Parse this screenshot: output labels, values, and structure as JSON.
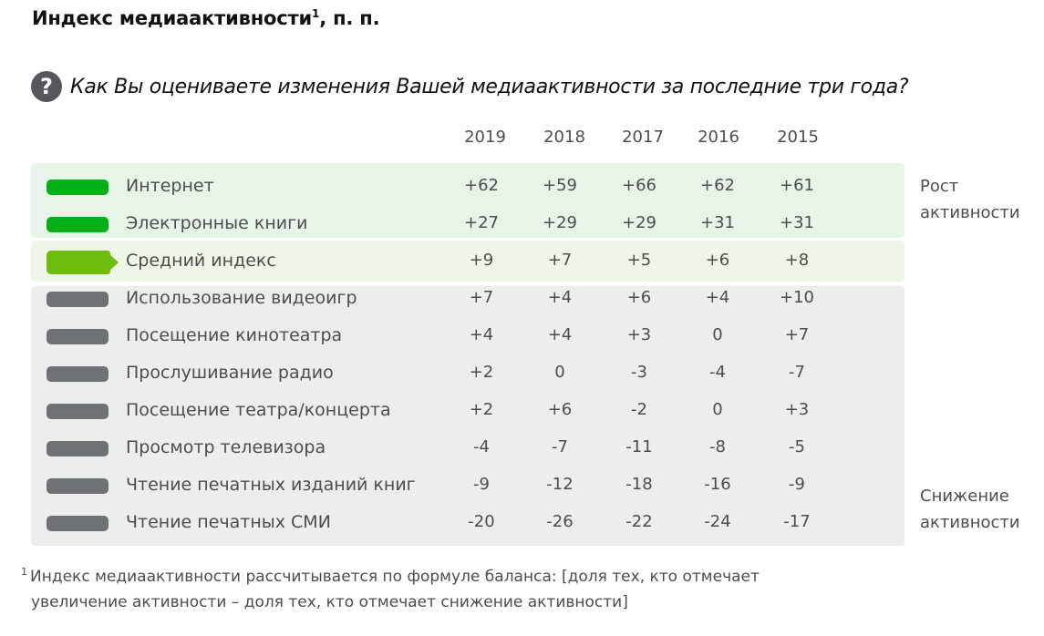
{
  "title": {
    "text": "Индекс медиаактивности",
    "sup": "1",
    "suffix": ", п. п."
  },
  "question": {
    "icon": "question-circle-icon",
    "glyph": "?",
    "text": "Как Вы оцениваете изменения Вашей медиаактивности за последние три года?"
  },
  "years": [
    "2019",
    "2018",
    "2017",
    "2016",
    "2015"
  ],
  "rows": [
    {
      "label": "Интернет",
      "group": "grow",
      "values": [
        "+62",
        "+59",
        "+66",
        "+62",
        "+61"
      ]
    },
    {
      "label": "Электронные книги",
      "group": "grow",
      "values": [
        "+27",
        "+29",
        "+29",
        "+31",
        "+31"
      ]
    },
    {
      "label": "Средний индекс",
      "group": "avg",
      "values": [
        "+9",
        "+7",
        "+5",
        "+6",
        "+8"
      ]
    },
    {
      "label": "Использование видеоигр",
      "group": "fall",
      "values": [
        "+7",
        "+4",
        "+6",
        "+4",
        "+10"
      ]
    },
    {
      "label": "Посещение кинотеатра",
      "group": "fall",
      "values": [
        "+4",
        "+4",
        "+3",
        "0",
        "+7"
      ]
    },
    {
      "label": "Прослушивание радио",
      "group": "fall",
      "values": [
        "+2",
        "0",
        "-3",
        "-4",
        "-7"
      ]
    },
    {
      "label": "Посещение театра/концерта",
      "group": "fall",
      "values": [
        "+2",
        "+6",
        "-2",
        "0",
        "+3"
      ]
    },
    {
      "label": "Просмотр телевизора",
      "group": "fall",
      "values": [
        "-4",
        "-7",
        "-11",
        "-8",
        "-5"
      ]
    },
    {
      "label": "Чтение печатных изданий книг",
      "group": "fall",
      "values": [
        "-9",
        "-12",
        "-18",
        "-16",
        "-9"
      ]
    },
    {
      "label": "Чтение печатных СМИ",
      "group": "fall",
      "values": [
        "-20",
        "-26",
        "-22",
        "-24",
        "-17"
      ]
    }
  ],
  "side_labels": {
    "top": [
      "Рост",
      "активности"
    ],
    "bottom": [
      "Снижение",
      "активности"
    ]
  },
  "footnote": {
    "sup": "1",
    "line1": "Индекс медиаактивности рассчитывается по формуле баланса: [доля тех, кто отмечает",
    "line2": "увеличение активности – доля тех, кто отмечает снижение активности]"
  },
  "colors": {
    "grow_marker": "#00b014",
    "avg_marker": "#6cbe0a",
    "fall_marker": "#6f7274",
    "grow_bg": "#e7f5e9",
    "avg_bg": "#eef6e8",
    "fall_bg": "#eceded"
  },
  "chart_data": {
    "type": "table",
    "title": "Индекс медиаактивности, п. п.",
    "subtitle": "Как Вы оцениваете изменения Вашей медиаактивности за последние три года?",
    "categories": [
      "2019",
      "2018",
      "2017",
      "2016",
      "2015"
    ],
    "series": [
      {
        "name": "Интернет",
        "values": [
          62,
          59,
          66,
          62,
          61
        ]
      },
      {
        "name": "Электронные книги",
        "values": [
          27,
          29,
          29,
          31,
          31
        ]
      },
      {
        "name": "Средний индекс",
        "values": [
          9,
          7,
          5,
          6,
          8
        ]
      },
      {
        "name": "Использование видеоигр",
        "values": [
          7,
          4,
          6,
          4,
          10
        ]
      },
      {
        "name": "Посещение кинотеатра",
        "values": [
          4,
          4,
          3,
          0,
          7
        ]
      },
      {
        "name": "Прослушивание радио",
        "values": [
          2,
          0,
          -3,
          -4,
          -7
        ]
      },
      {
        "name": "Посещение театра/концерта",
        "values": [
          2,
          6,
          -2,
          0,
          3
        ]
      },
      {
        "name": "Просмотр телевизора",
        "values": [
          -4,
          -7,
          -11,
          -8,
          -5
        ]
      },
      {
        "name": "Чтение печатных изданий книг",
        "values": [
          -9,
          -12,
          -18,
          -16,
          -9
        ]
      },
      {
        "name": "Чтение печатных СМИ",
        "values": [
          -20,
          -26,
          -22,
          -24,
          -17
        ]
      }
    ],
    "annotations": [
      "Рост активности",
      "Снижение активности"
    ],
    "footnote": "Индекс медиаактивности рассчитывается по формуле баланса: [доля тех, кто отмечает увеличение активности – доля тех, кто отмечает снижение активности]"
  }
}
